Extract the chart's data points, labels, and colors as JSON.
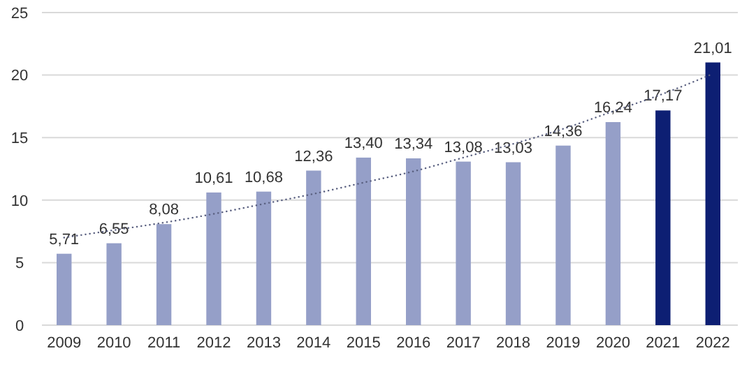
{
  "chart_data": {
    "type": "bar",
    "categories": [
      "2009",
      "2010",
      "2011",
      "2012",
      "2013",
      "2014",
      "2015",
      "2016",
      "2017",
      "2018",
      "2019",
      "2020",
      "2021",
      "2022"
    ],
    "series": [
      {
        "values": [
          5.71,
          6.55,
          8.08,
          10.61,
          10.68,
          12.36,
          13.4,
          13.34,
          13.08,
          13.03,
          14.36,
          16.24,
          17.17,
          21.01
        ],
        "colors": [
          "#959fc8",
          "#959fc8",
          "#959fc8",
          "#959fc8",
          "#959fc8",
          "#959fc8",
          "#959fc8",
          "#959fc8",
          "#959fc8",
          "#959fc8",
          "#959fc8",
          "#959fc8",
          "#0d1f73",
          "#0d1f73"
        ],
        "value_labels": [
          "5,71",
          "6,55",
          "8,08",
          "10,61",
          "10,68",
          "12,36",
          "13,40",
          "13,34",
          "13,08",
          "13,03",
          "14,36",
          "16,24",
          "17,17",
          "21,01"
        ]
      },
      {
        "type": "line",
        "values": [
          7.0,
          7.6,
          8.2,
          8.9,
          9.7,
          10.5,
          11.4,
          12.3,
          13.4,
          14.5,
          15.7,
          17.1,
          18.5,
          20.1
        ],
        "color": "#5a6080",
        "line_style": "dotted"
      }
    ],
    "ylim": [
      0,
      25
    ],
    "yticks": [
      0,
      5,
      10,
      15,
      20,
      25
    ],
    "grid": "y"
  }
}
